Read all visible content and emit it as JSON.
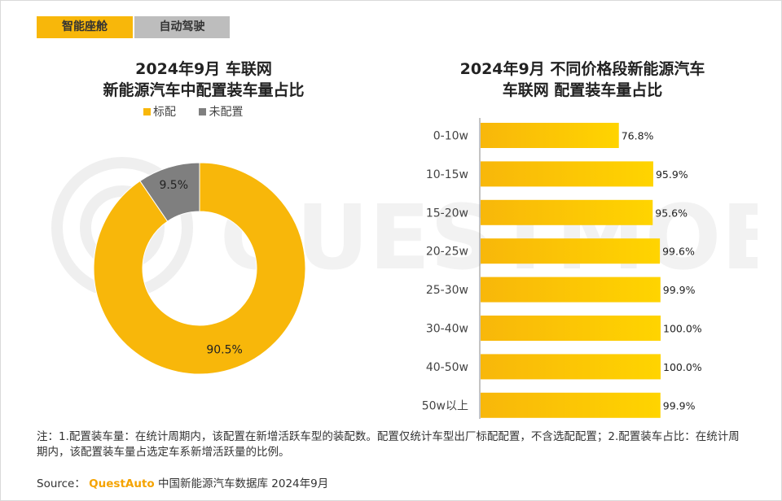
{
  "tabs": [
    {
      "label": "智能座舱",
      "active": true
    },
    {
      "label": "自动驾驶",
      "active": false
    }
  ],
  "watermark": "QUESTMOBILE",
  "colors": {
    "accent": "#f8b70a",
    "grey": "#7f7f7f",
    "tab_inactive": "#bdbdbd",
    "bar_start": "#f8b70a",
    "bar_end": "#ffd400"
  },
  "left_chart": {
    "title_line1": "2024年9月 车联网",
    "title_line2": "新能源汽车中配置装车量占比",
    "legend": [
      {
        "label": "标配",
        "color": "#f8b70a"
      },
      {
        "label": "未配置",
        "color": "#7f7f7f"
      }
    ]
  },
  "right_chart": {
    "title_line1": "2024年9月 不同价格段新能源汽车",
    "title_line2": "车联网 配置装车量占比"
  },
  "chart_data": [
    {
      "type": "pie",
      "donut": true,
      "title": "2024年9月 车联网 新能源汽车中配置装车量占比",
      "labels": [
        "标配",
        "未配置"
      ],
      "values": [
        90.5,
        9.5
      ],
      "value_labels": [
        "90.5%",
        "9.5%"
      ],
      "colors": [
        "#f8b70a",
        "#7f7f7f"
      ]
    },
    {
      "type": "bar",
      "orientation": "horizontal",
      "title": "2024年9月 不同价格段新能源汽车 车联网 配置装车量占比",
      "categories": [
        "0-10w",
        "10-15w",
        "15-20w",
        "20-25w",
        "25-30w",
        "30-40w",
        "40-50w",
        "50w以上"
      ],
      "values": [
        76.8,
        95.9,
        95.6,
        99.6,
        99.9,
        100.0,
        100.0,
        99.9
      ],
      "value_labels": [
        "76.8%",
        "95.9%",
        "95.6%",
        "99.6%",
        "99.9%",
        "100.0%",
        "100.0%",
        "99.9%"
      ],
      "xlim": [
        0,
        100
      ],
      "unit": "%"
    }
  ],
  "note": "注：1.配置装车量：在统计周期内，该配置在新增活跃车型的装配数。配置仅统计车型出厂标配配置，不含选配配置；2.配置装车占比：在统计周期内，该配置装车量占选定车系新增活跃量的比例。",
  "source": {
    "prefix": "Source：",
    "brand": "QuestAuto",
    "suffix": "中国新能源汽车数据库 2024年9月"
  }
}
